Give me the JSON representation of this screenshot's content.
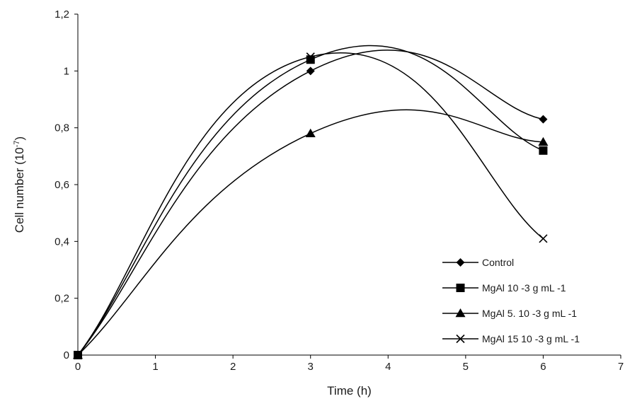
{
  "chart_data": {
    "type": "line",
    "xlabel": "Time (h)",
    "ylabel": "Cell number (10",
    "ylabel_exponent": "-7",
    "ylabel_suffix": ")",
    "xlim": [
      0,
      7
    ],
    "ylim": [
      0,
      1.2
    ],
    "x_ticks": [
      0,
      1,
      2,
      3,
      4,
      5,
      6,
      7
    ],
    "x_tick_labels": [
      "0",
      "1",
      "2",
      "3",
      "4",
      "5",
      "6",
      "7"
    ],
    "y_ticks": [
      0,
      0.2,
      0.4,
      0.6,
      0.8,
      1.0,
      1.2
    ],
    "y_tick_labels": [
      "0",
      "0,2",
      "0,4",
      "0,6",
      "0,8",
      "1",
      "1,2"
    ],
    "grid": false,
    "legend_position": "bottom-right",
    "line_color": "#000000",
    "x": [
      0,
      3,
      6
    ],
    "series": [
      {
        "name": "Control",
        "marker": "diamond",
        "values": [
          0,
          1.0,
          0.83
        ]
      },
      {
        "name": "MgAl 10 -3 g mL -1",
        "marker": "square",
        "values": [
          0,
          1.04,
          0.72
        ]
      },
      {
        "name": "MgAl 5. 10 -3 g mL -1",
        "marker": "triangle",
        "values": [
          0,
          0.78,
          0.75
        ]
      },
      {
        "name": "MgAl 15 10 -3 g mL -1",
        "marker": "cross",
        "values": [
          0,
          1.05,
          0.41
        ]
      }
    ]
  }
}
